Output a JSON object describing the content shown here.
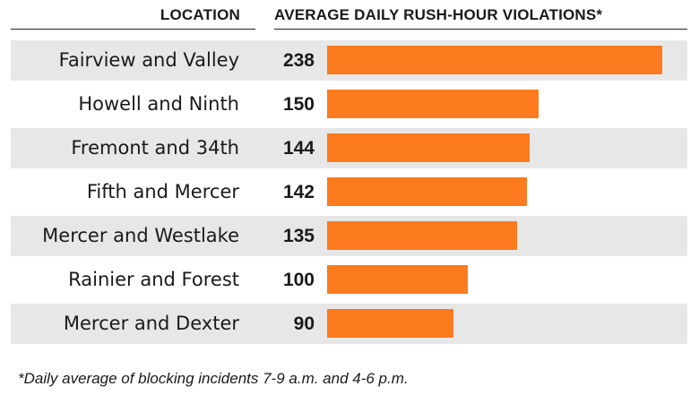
{
  "headers": {
    "location": "LOCATION",
    "value": "AVERAGE DAILY RUSH-HOUR VIOLATIONS*"
  },
  "footnote": "*Daily average of blocking incidents 7-9 a.m. and 4-6 p.m.",
  "colors": {
    "bar": "#fb7b1e",
    "row_shade": "#e7e7e7"
  },
  "chart_data": {
    "type": "bar",
    "orientation": "horizontal",
    "title": "",
    "xlabel": "AVERAGE DAILY RUSH-HOUR VIOLATIONS*",
    "ylabel": "LOCATION",
    "categories": [
      "Fairview and Valley",
      "Howell and Ninth",
      "Fremont and 34th",
      "Fifth and Mercer",
      "Mercer and Westlake",
      "Rainier and Forest",
      "Mercer and Dexter"
    ],
    "values": [
      238,
      150,
      144,
      142,
      135,
      100,
      90
    ],
    "xlim": [
      0,
      238
    ],
    "grid": false,
    "legend": "none"
  }
}
